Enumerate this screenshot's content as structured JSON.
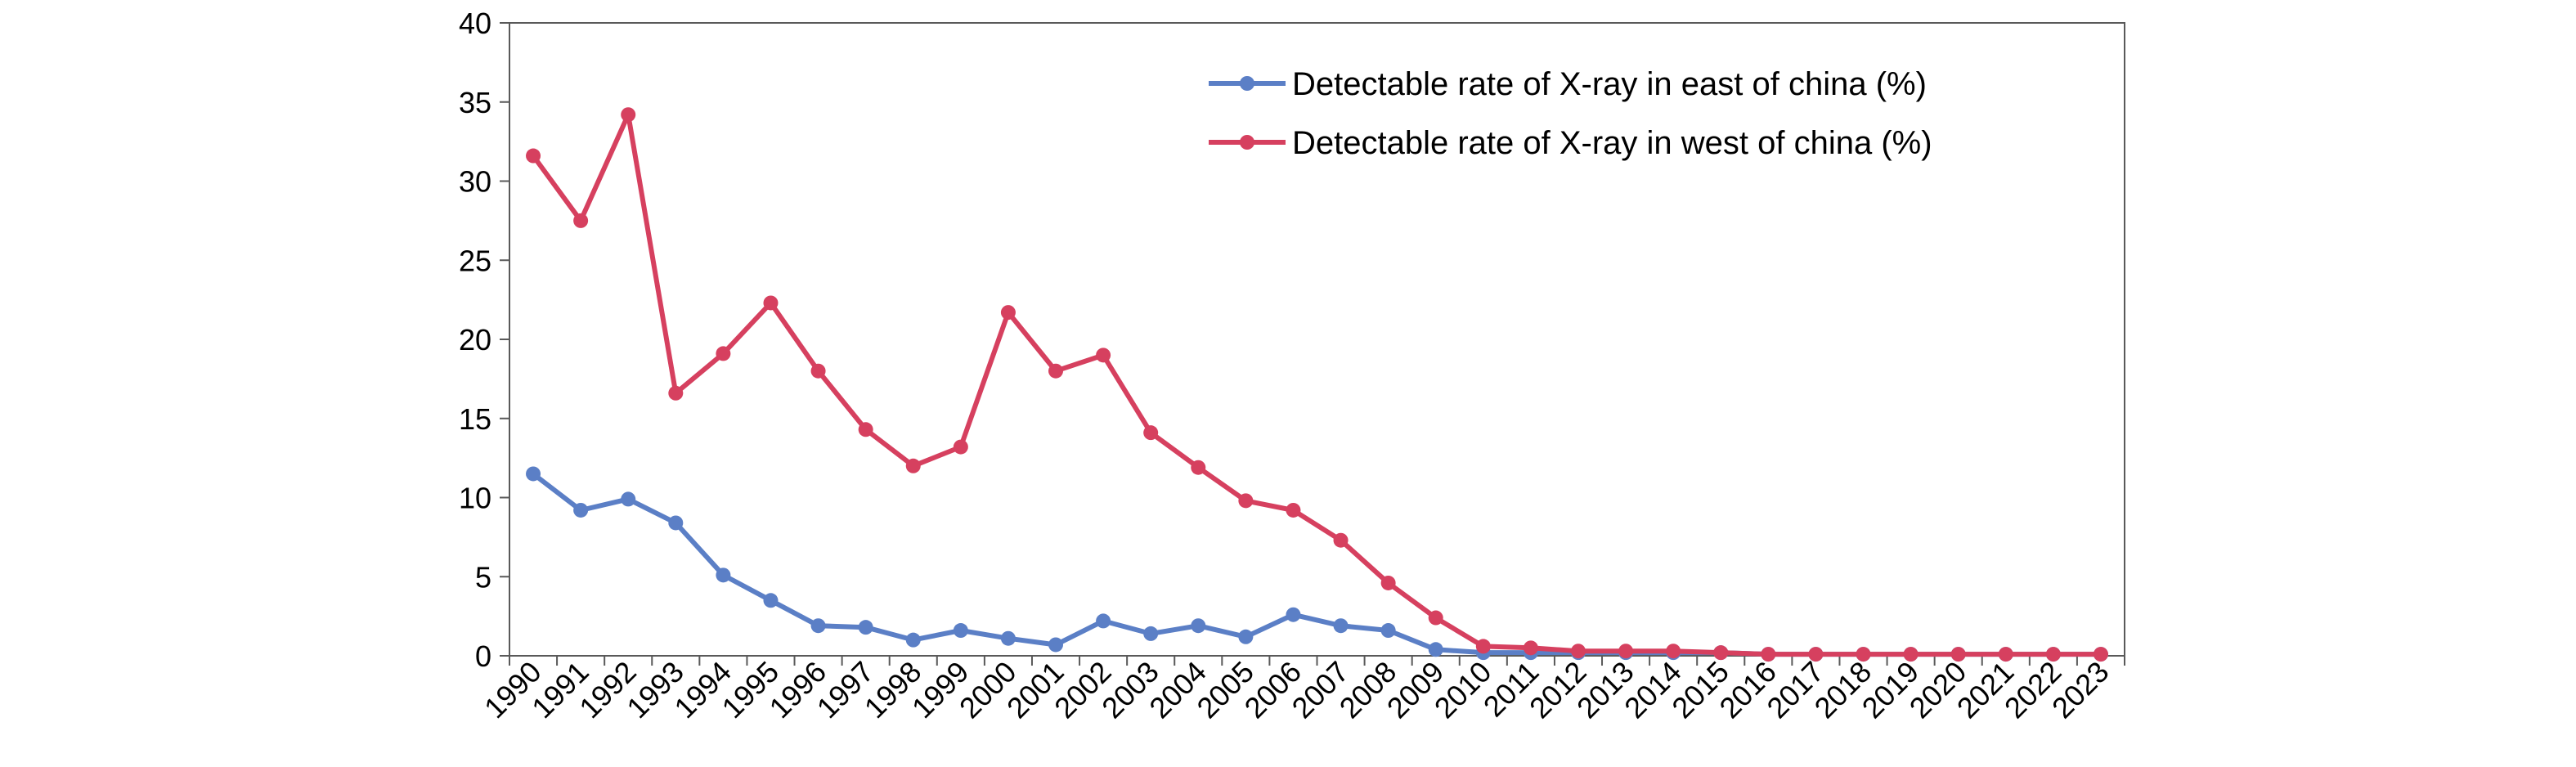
{
  "chart_data": {
    "type": "line",
    "title": "",
    "xlabel": "",
    "ylabel": "",
    "ylim": [
      0,
      40
    ],
    "yticks": [
      "0",
      "5",
      "10",
      "15",
      "20",
      "25",
      "30",
      "35",
      "40"
    ],
    "grid": false,
    "legend_position": "top-right",
    "categories": [
      "1990",
      "1991",
      "1992",
      "1993",
      "1994",
      "1995",
      "1996",
      "1997",
      "1998",
      "1999",
      "2000",
      "2001",
      "2002",
      "2003",
      "2004",
      "2005",
      "2006",
      "2007",
      "2008",
      "2009",
      "2010",
      "2011",
      "2012",
      "2013",
      "2014",
      "2015",
      "2016",
      "2017",
      "2018",
      "2019",
      "2020",
      "2021",
      "2022",
      "2023"
    ],
    "series": [
      {
        "name": "Detectable rate of X-ray in east of china (%)",
        "color": "#5b7fc6",
        "values": [
          11.5,
          9.2,
          9.9,
          8.4,
          5.1,
          3.5,
          1.9,
          1.8,
          1.0,
          1.6,
          1.1,
          0.7,
          2.2,
          1.4,
          1.9,
          1.2,
          2.6,
          1.9,
          1.6,
          0.4,
          0.2,
          0.2,
          0.2,
          0.2,
          0.2,
          0.2,
          0.1,
          0.1,
          0.1,
          0.1,
          0.1,
          0.1,
          0.1,
          0.1
        ]
      },
      {
        "name": "Detectable rate of X-ray in west of china (%)",
        "color": "#d6405f",
        "values": [
          31.6,
          27.5,
          34.2,
          16.6,
          19.1,
          22.3,
          18.0,
          14.3,
          12.0,
          13.2,
          21.7,
          18.0,
          19.0,
          14.1,
          11.9,
          9.8,
          9.2,
          7.3,
          4.6,
          2.4,
          0.6,
          0.5,
          0.3,
          0.3,
          0.3,
          0.2,
          0.1,
          0.1,
          0.1,
          0.1,
          0.1,
          0.1,
          0.1,
          0.1
        ]
      }
    ]
  }
}
